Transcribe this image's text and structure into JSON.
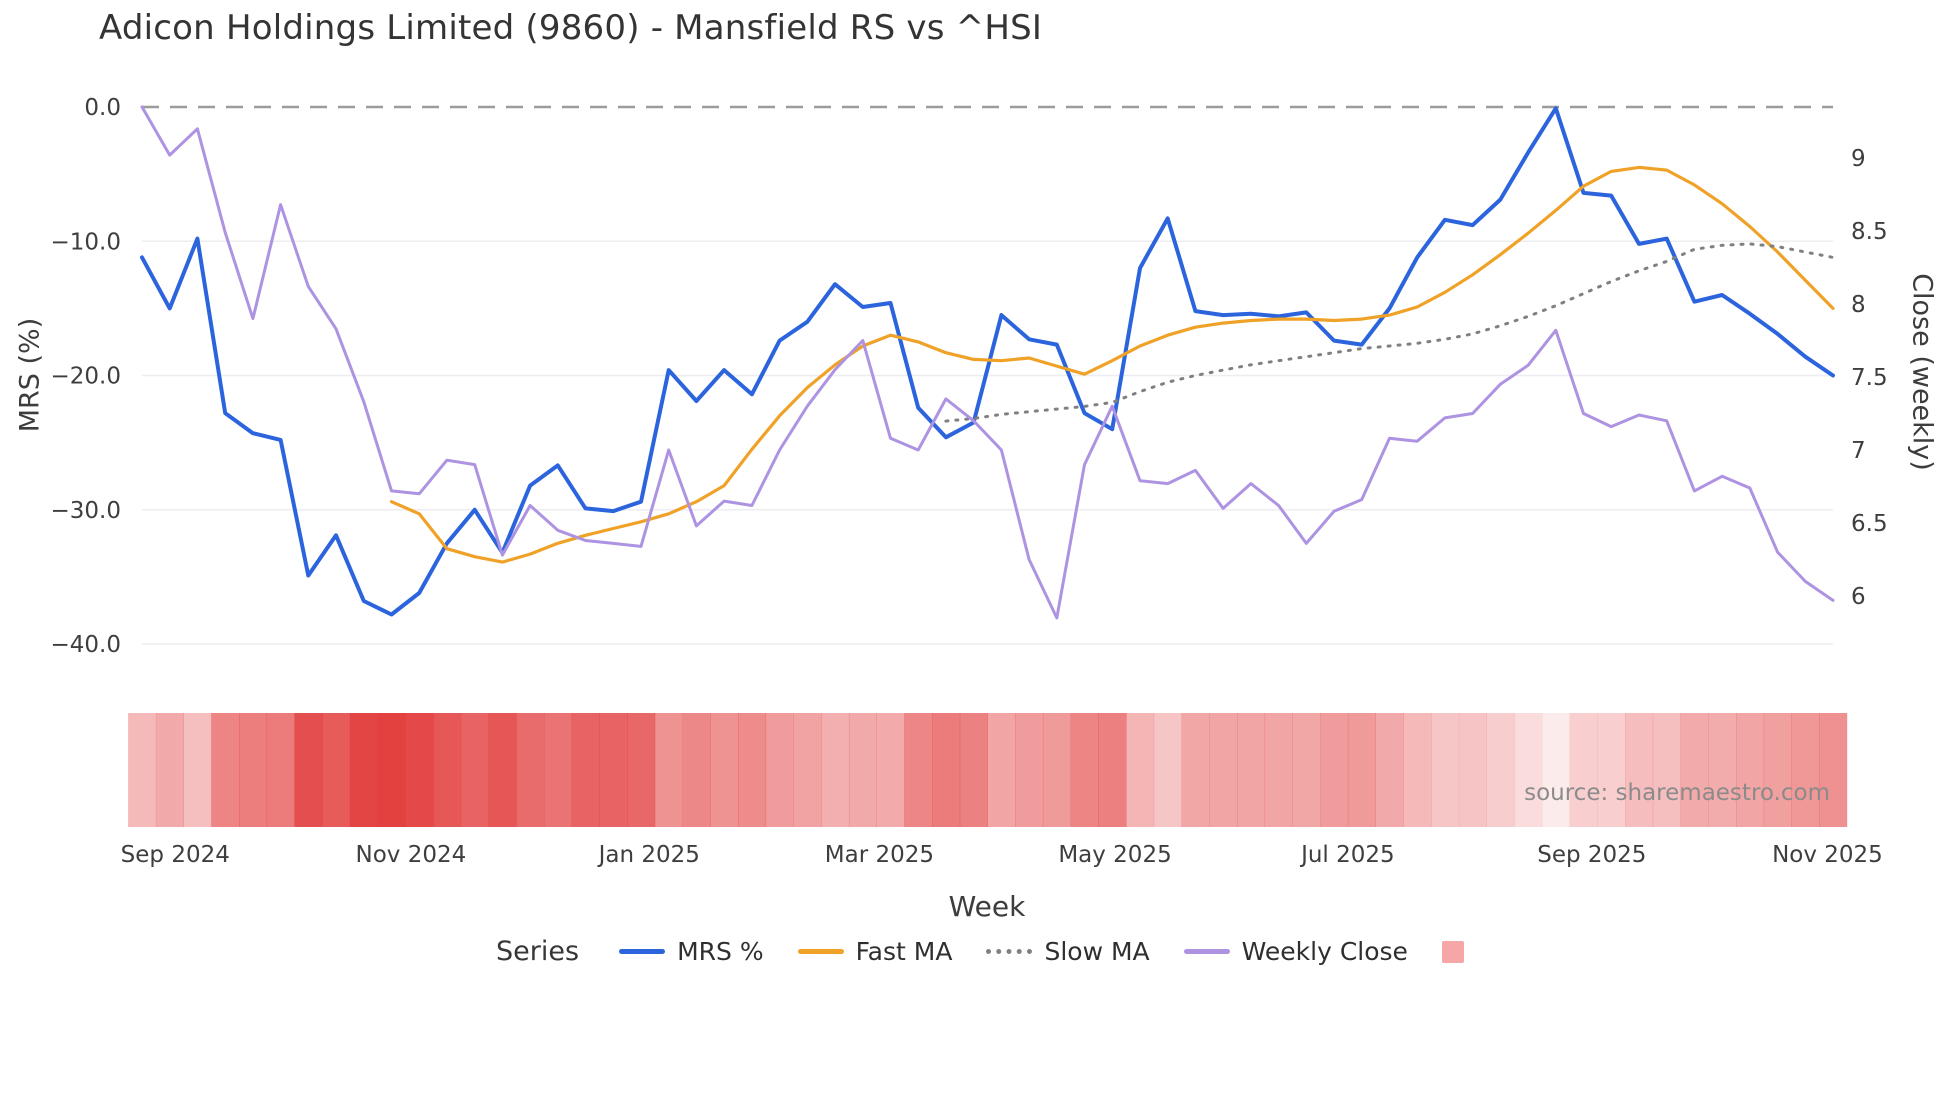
{
  "title": "Adicon Holdings Limited (9860) - Mansfield RS vs ^HSI",
  "source": "source: sharemaestro.com",
  "axes": {
    "left_label": "MRS (%)",
    "right_label": "Close (weekly)",
    "x_label": "Week",
    "left_ticks": [
      "0.0",
      "−10.0",
      "−20.0",
      "−30.0",
      "−40.0"
    ],
    "left_tick_values": [
      0,
      -10,
      -20,
      -30,
      -40
    ],
    "right_ticks": [
      "9",
      "8.5",
      "8",
      "7.5",
      "7",
      "6.5",
      "6"
    ],
    "right_tick_values": [
      9,
      8.5,
      8,
      7.5,
      7,
      6.5,
      6
    ],
    "x_ticks": [
      {
        "label": "Sep 2024",
        "pos": 1.2
      },
      {
        "label": "Nov 2024",
        "pos": 9.7
      },
      {
        "label": "Jan 2025",
        "pos": 18.3
      },
      {
        "label": "Mar 2025",
        "pos": 26.6
      },
      {
        "label": "May 2025",
        "pos": 35.1
      },
      {
        "label": "Jul 2025",
        "pos": 43.5
      },
      {
        "label": "Sep 2025",
        "pos": 52.3
      },
      {
        "label": "Nov 2025",
        "pos": 60.8
      }
    ]
  },
  "legend": {
    "title": "Series",
    "items": [
      {
        "label": "MRS %",
        "color": "#2c64dd",
        "style": "line"
      },
      {
        "label": "Fast MA",
        "color": "#efa227",
        "style": "line"
      },
      {
        "label": "Slow MA",
        "color": "#808080",
        "style": "dotted"
      },
      {
        "label": "Weekly Close",
        "color": "#ad93e2",
        "style": "line"
      },
      {
        "label": "",
        "color": "#f6a6a6",
        "style": "square"
      }
    ]
  },
  "chart_data": {
    "type": "line",
    "x_unit": "week_index",
    "n_points": 62,
    "x_range_labels": [
      "Sep 2024",
      "Nov 2025"
    ],
    "left_axis": {
      "label": "MRS (%)",
      "range": [
        -42.5,
        2.0
      ],
      "zero_line": true
    },
    "right_axis": {
      "label": "Close (weekly)",
      "range": [
        5.8,
        9.4
      ]
    },
    "grid": "horizontal-faint",
    "legend_position": "bottom-center",
    "series": [
      {
        "name": "MRS %",
        "axis": "left",
        "color": "#2c64dd",
        "width": 4,
        "dash": null,
        "values": [
          -11.2,
          -15.0,
          -9.8,
          -22.8,
          -24.3,
          -24.8,
          -34.9,
          -31.9,
          -36.8,
          -37.8,
          -36.2,
          -32.5,
          -30.0,
          -33.2,
          -28.2,
          -26.7,
          -29.9,
          -30.1,
          -29.4,
          -19.6,
          -21.9,
          -19.6,
          -21.4,
          -17.4,
          -16.0,
          -13.2,
          -14.9,
          -14.6,
          -22.4,
          -24.6,
          -23.5,
          -15.5,
          -17.3,
          -17.7,
          -22.8,
          -24.0,
          -12.0,
          -8.3,
          -15.2,
          -15.5,
          -15.4,
          -15.6,
          -15.3,
          -17.4,
          -17.7,
          -15.0,
          -11.2,
          -8.4,
          -8.8,
          -6.9,
          -3.4,
          -0.1,
          -6.4,
          -6.6,
          -10.2,
          -9.8,
          -14.5,
          -14.0,
          -15.4,
          -16.9,
          -18.6,
          -20.0
        ]
      },
      {
        "name": "Fast MA",
        "axis": "left",
        "color": "#efa227",
        "width": 3.2,
        "dash": null,
        "values": [
          null,
          null,
          null,
          null,
          null,
          null,
          null,
          null,
          null,
          -29.4,
          -30.3,
          -32.9,
          -33.5,
          -33.9,
          -33.3,
          -32.5,
          -31.9,
          -31.4,
          -30.9,
          -30.3,
          -29.4,
          -28.2,
          -25.5,
          -23.0,
          -20.9,
          -19.2,
          -17.8,
          -17.0,
          -17.5,
          -18.3,
          -18.8,
          -18.9,
          -18.7,
          -19.3,
          -19.9,
          -18.9,
          -17.8,
          -17.0,
          -16.4,
          -16.1,
          -15.9,
          -15.8,
          -15.8,
          -15.9,
          -15.8,
          -15.5,
          -14.9,
          -13.8,
          -12.5,
          -11.0,
          -9.4,
          -7.7,
          -5.9,
          -4.8,
          -4.5,
          -4.7,
          -5.8,
          -7.2,
          -8.9,
          -10.8,
          -12.9,
          -15.0
        ]
      },
      {
        "name": "Slow MA",
        "axis": "left",
        "color": "#808080",
        "width": 3,
        "dash": "2 8",
        "values": [
          null,
          null,
          null,
          null,
          null,
          null,
          null,
          null,
          null,
          null,
          null,
          null,
          null,
          null,
          null,
          null,
          null,
          null,
          null,
          null,
          null,
          null,
          null,
          null,
          null,
          null,
          null,
          null,
          null,
          -23.4,
          -23.2,
          -22.9,
          -22.7,
          -22.5,
          -22.3,
          -22.0,
          -21.2,
          -20.5,
          -20.0,
          -19.6,
          -19.2,
          -18.9,
          -18.6,
          -18.3,
          -18.0,
          -17.8,
          -17.6,
          -17.3,
          -16.9,
          -16.3,
          -15.6,
          -14.8,
          -13.9,
          -13.0,
          -12.2,
          -11.5,
          -10.6,
          -10.3,
          -10.2,
          -10.4,
          -10.8,
          -11.2
        ]
      },
      {
        "name": "Weekly Close",
        "axis": "right",
        "color": "#ad93e2",
        "width": 3,
        "dash": null,
        "values": [
          9.35,
          9.02,
          9.2,
          8.49,
          7.9,
          8.68,
          8.12,
          7.83,
          7.33,
          6.72,
          6.7,
          6.93,
          6.9,
          6.28,
          6.62,
          6.45,
          6.38,
          6.36,
          6.34,
          7.0,
          6.48,
          6.65,
          6.62,
          7.0,
          7.3,
          7.55,
          7.75,
          7.08,
          7.0,
          7.35,
          7.2,
          7.0,
          6.25,
          5.85,
          6.9,
          7.3,
          6.79,
          6.77,
          6.86,
          6.6,
          6.77,
          6.62,
          6.36,
          6.58,
          6.66,
          7.08,
          7.06,
          7.22,
          7.25,
          7.45,
          7.58,
          7.82,
          7.25,
          7.16,
          7.24,
          7.2,
          6.72,
          6.82,
          6.74,
          6.3,
          6.1,
          5.97
        ]
      }
    ],
    "heatmap": {
      "color": "#e23c3c",
      "values": [
        0.29,
        0.39,
        0.26,
        0.6,
        0.64,
        0.65,
        0.92,
        0.84,
        0.97,
        1.0,
        0.95,
        0.86,
        0.79,
        0.87,
        0.74,
        0.7,
        0.79,
        0.79,
        0.77,
        0.52,
        0.58,
        0.52,
        0.56,
        0.46,
        0.42,
        0.35,
        0.39,
        0.38,
        0.59,
        0.65,
        0.62,
        0.41,
        0.46,
        0.47,
        0.6,
        0.63,
        0.32,
        0.22,
        0.4,
        0.41,
        0.41,
        0.41,
        0.4,
        0.46,
        0.47,
        0.39,
        0.29,
        0.22,
        0.23,
        0.18,
        0.09,
        0.0,
        0.17,
        0.17,
        0.27,
        0.26,
        0.38,
        0.37,
        0.41,
        0.44,
        0.49,
        0.53
      ]
    },
    "zero_line": {
      "value": 0,
      "style": "dashed",
      "color": "#9b9b9b"
    }
  }
}
